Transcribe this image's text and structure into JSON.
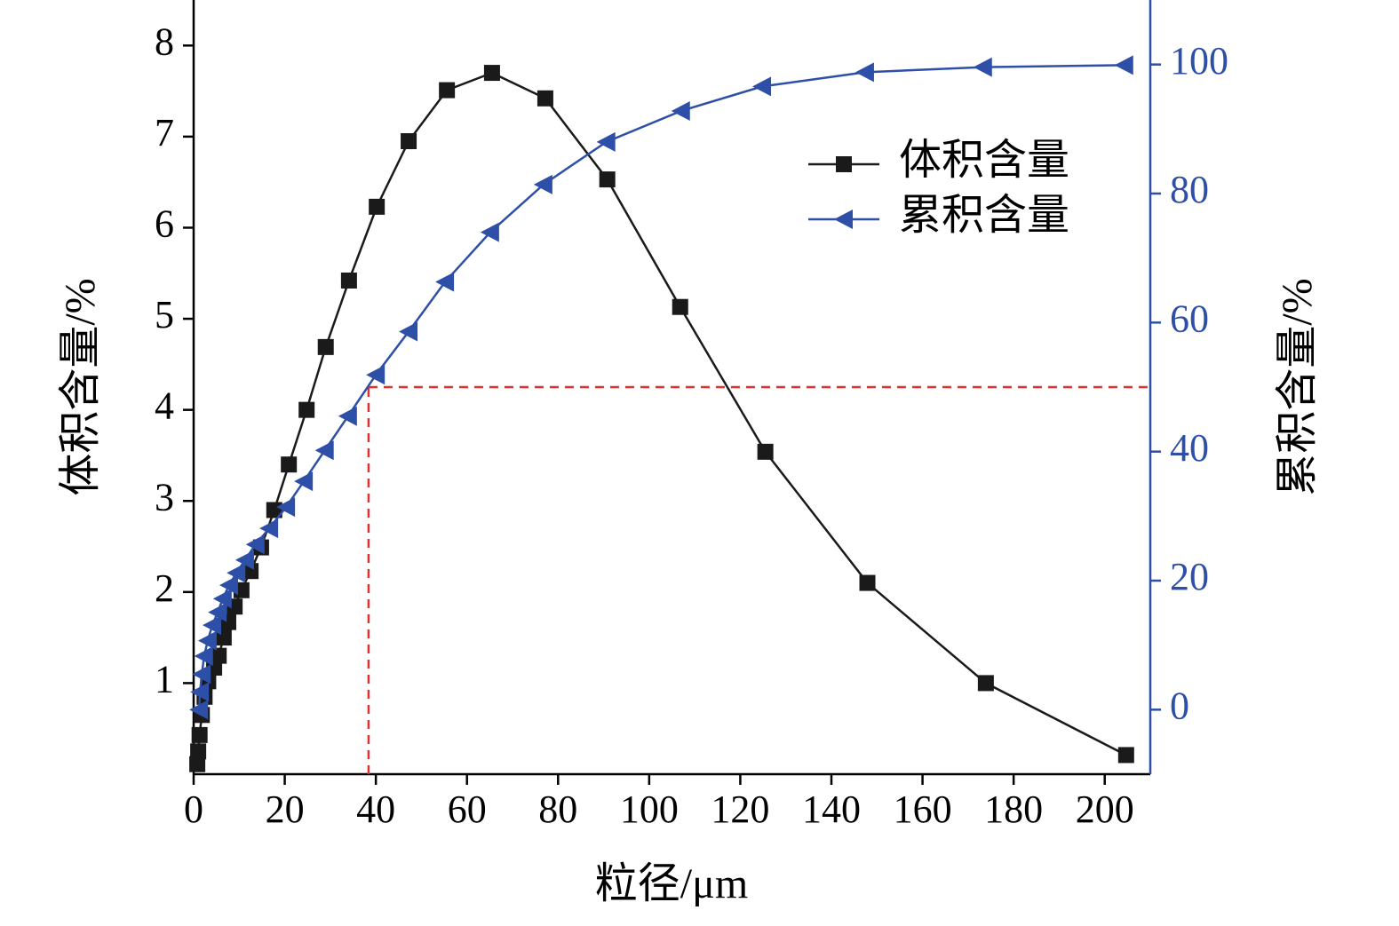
{
  "chart_data": {
    "type": "line",
    "x_label": "粒径/μm",
    "y_label": "体积含量/%",
    "y2_label": "累积含量/%",
    "xlim": [
      0,
      210
    ],
    "xticks": [
      0,
      20,
      40,
      60,
      80,
      100,
      120,
      140,
      160,
      180,
      200
    ],
    "ylim": [
      0,
      8.5
    ],
    "yticks": [
      1,
      2,
      3,
      4,
      5,
      6,
      7,
      8
    ],
    "y2lim": [
      -10,
      110
    ],
    "y2ticks": [
      0,
      20,
      40,
      60,
      80,
      100
    ],
    "legend": "upper right",
    "series": [
      {
        "name": "体积含量",
        "color": "#1a1a1a",
        "marker": "square",
        "x": [
          0.8,
          1.0,
          1.3,
          1.8,
          2.4,
          3.2,
          4.5,
          5.5,
          6.6,
          7.6,
          9.0,
          10.5,
          12.5,
          14.8,
          17.7,
          20.9,
          24.8,
          29.0,
          34.1,
          40.2,
          47.2,
          55.6,
          65.5,
          77.2,
          90.8,
          106.8,
          125.5,
          147.9,
          173.9,
          204.7
        ],
        "values": [
          0.11,
          0.25,
          0.43,
          0.65,
          0.85,
          1.02,
          1.17,
          1.3,
          1.5,
          1.67,
          1.84,
          2.02,
          2.23,
          2.49,
          2.9,
          3.4,
          4.0,
          4.69,
          5.42,
          6.23,
          6.95,
          7.51,
          7.7,
          7.42,
          6.53,
          5.13,
          3.54,
          2.1,
          1.0,
          0.21
        ]
      },
      {
        "name": "累积含量",
        "color": "#2e4fa8",
        "marker": "triangle-left",
        "axis": "y2",
        "x": [
          1.2,
          1.4,
          1.8,
          2.3,
          3.1,
          4.1,
          5.3,
          6.4,
          7.8,
          9.4,
          11.3,
          13.6,
          16.6,
          20.3,
          24.2,
          28.8,
          33.9,
          40.0,
          47.2,
          55.2,
          65.1,
          76.8,
          90.6,
          107.0,
          124.8,
          147.4,
          173.3,
          204.3
        ],
        "values": [
          0,
          2.75,
          5.5,
          8.3,
          10.7,
          13.1,
          15.1,
          17.2,
          19.3,
          21.2,
          23.2,
          25.6,
          28.1,
          31.4,
          35.4,
          40.2,
          45.5,
          51.9,
          58.6,
          66.3,
          74.0,
          81.4,
          88.0,
          92.8,
          96.6,
          98.8,
          99.6,
          99.9
        ]
      }
    ],
    "reference": {
      "x": 38.4,
      "y": 50,
      "axis": "y2",
      "color": "#e0312f"
    }
  }
}
